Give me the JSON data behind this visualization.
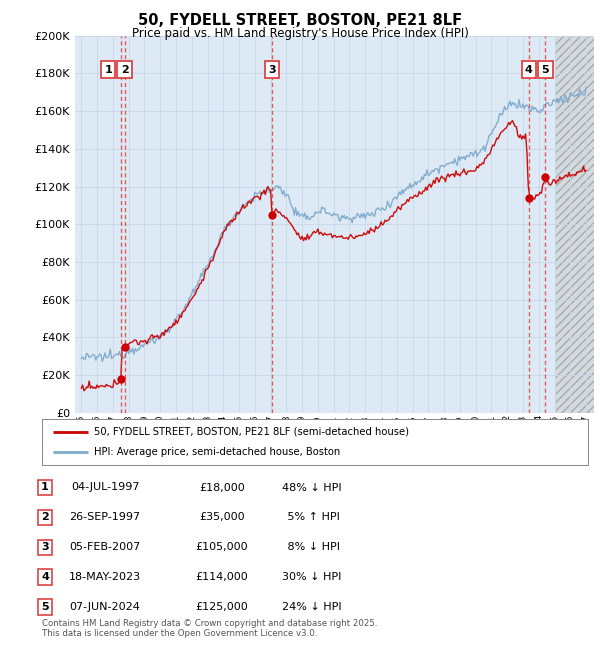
{
  "title": "50, FYDELL STREET, BOSTON, PE21 8LF",
  "subtitle": "Price paid vs. HM Land Registry's House Price Index (HPI)",
  "legend_line1": "50, FYDELL STREET, BOSTON, PE21 8LF (semi-detached house)",
  "legend_line2": "HPI: Average price, semi-detached house, Boston",
  "footnote": "Contains HM Land Registry data © Crown copyright and database right 2025.\nThis data is licensed under the Open Government Licence v3.0.",
  "transactions": [
    {
      "num": 1,
      "date": "04-JUL-1997",
      "price": "£18,000",
      "pct": "48% ↓ HPI",
      "year": 1997.5
    },
    {
      "num": 2,
      "date": "26-SEP-1997",
      "price": "£35,000",
      "pct": " 5% ↑ HPI",
      "year": 1997.75
    },
    {
      "num": 3,
      "date": "05-FEB-2007",
      "price": "£105,000",
      "pct": " 8% ↓ HPI",
      "year": 2007.08
    },
    {
      "num": 4,
      "date": "18-MAY-2023",
      "price": "£114,000",
      "pct": "30% ↓ HPI",
      "year": 2023.37
    },
    {
      "num": 5,
      "date": "07-JUN-2024",
      "price": "£125,000",
      "pct": "24% ↓ HPI",
      "year": 2024.42
    }
  ],
  "price_color": "#cc0000",
  "hpi_color": "#7eaacc",
  "vline_color": "#dd4444",
  "grid_color": "#c8d8e8",
  "bg_color": "#ddeaf5",
  "plot_bg": "#ffffff",
  "future_bg": "#d8d8d8",
  "ylim": [
    0,
    200000
  ],
  "yticks": [
    0,
    20000,
    40000,
    60000,
    80000,
    100000,
    120000,
    140000,
    160000,
    180000,
    200000
  ],
  "xmin": 1994.6,
  "xmax": 2027.5,
  "future_start": 2025.0,
  "hpi_anchors": [
    [
      1995.0,
      29000
    ],
    [
      1996.0,
      29500
    ],
    [
      1997.0,
      30000
    ],
    [
      1997.5,
      31000
    ],
    [
      1998.0,
      33000
    ],
    [
      1999.0,
      36000
    ],
    [
      2000.0,
      40000
    ],
    [
      2001.0,
      49000
    ],
    [
      2002.0,
      62000
    ],
    [
      2003.0,
      78000
    ],
    [
      2004.0,
      96000
    ],
    [
      2005.0,
      108000
    ],
    [
      2006.0,
      115000
    ],
    [
      2007.0,
      118000
    ],
    [
      2007.5,
      120000
    ],
    [
      2008.0,
      116000
    ],
    [
      2008.5,
      107000
    ],
    [
      2009.0,
      103000
    ],
    [
      2009.5,
      104000
    ],
    [
      2010.0,
      107000
    ],
    [
      2010.5,
      107000
    ],
    [
      2011.0,
      105000
    ],
    [
      2011.5,
      103000
    ],
    [
      2012.0,
      104000
    ],
    [
      2012.5,
      104000
    ],
    [
      2013.0,
      104000
    ],
    [
      2013.5,
      106000
    ],
    [
      2014.0,
      108000
    ],
    [
      2014.5,
      111000
    ],
    [
      2015.0,
      115000
    ],
    [
      2015.5,
      118000
    ],
    [
      2016.0,
      121000
    ],
    [
      2016.5,
      124000
    ],
    [
      2017.0,
      127000
    ],
    [
      2017.5,
      129000
    ],
    [
      2018.0,
      132000
    ],
    [
      2018.5,
      133000
    ],
    [
      2019.0,
      135000
    ],
    [
      2019.5,
      136000
    ],
    [
      2020.0,
      137000
    ],
    [
      2020.5,
      140000
    ],
    [
      2021.0,
      148000
    ],
    [
      2021.5,
      156000
    ],
    [
      2022.0,
      162000
    ],
    [
      2022.3,
      165000
    ],
    [
      2022.7,
      163000
    ],
    [
      2023.0,
      163000
    ],
    [
      2023.5,
      161000
    ],
    [
      2024.0,
      160000
    ],
    [
      2024.5,
      163000
    ],
    [
      2025.0,
      165000
    ],
    [
      2026.0,
      168000
    ],
    [
      2027.0,
      170000
    ]
  ],
  "price_anchors": [
    [
      1995.0,
      13000
    ],
    [
      1996.0,
      13500
    ],
    [
      1997.0,
      14000
    ],
    [
      1997.45,
      17500
    ],
    [
      1997.5,
      18000
    ],
    [
      1997.52,
      18200
    ],
    [
      1997.55,
      35000
    ],
    [
      1997.75,
      35200
    ],
    [
      1998.0,
      37000
    ],
    [
      1999.0,
      38000
    ],
    [
      2000.0,
      41000
    ],
    [
      2001.0,
      48000
    ],
    [
      2002.0,
      60000
    ],
    [
      2003.0,
      76000
    ],
    [
      2004.0,
      95000
    ],
    [
      2005.0,
      107000
    ],
    [
      2006.0,
      114000
    ],
    [
      2007.0,
      119000
    ],
    [
      2007.08,
      105000
    ],
    [
      2007.3,
      108000
    ],
    [
      2007.5,
      106000
    ],
    [
      2008.0,
      104000
    ],
    [
      2008.5,
      97000
    ],
    [
      2009.0,
      92000
    ],
    [
      2009.5,
      93000
    ],
    [
      2010.0,
      96000
    ],
    [
      2010.5,
      95000
    ],
    [
      2011.0,
      94000
    ],
    [
      2011.5,
      93000
    ],
    [
      2012.0,
      93000
    ],
    [
      2012.5,
      93500
    ],
    [
      2013.0,
      95000
    ],
    [
      2013.5,
      97000
    ],
    [
      2014.0,
      100000
    ],
    [
      2014.5,
      103000
    ],
    [
      2015.0,
      107000
    ],
    [
      2015.5,
      111000
    ],
    [
      2016.0,
      114000
    ],
    [
      2016.5,
      117000
    ],
    [
      2017.0,
      120000
    ],
    [
      2017.5,
      123000
    ],
    [
      2018.0,
      125000
    ],
    [
      2018.5,
      126000
    ],
    [
      2019.0,
      127000
    ],
    [
      2019.5,
      128000
    ],
    [
      2020.0,
      129000
    ],
    [
      2020.5,
      133000
    ],
    [
      2021.0,
      140000
    ],
    [
      2021.5,
      147000
    ],
    [
      2022.0,
      152000
    ],
    [
      2022.3,
      155000
    ],
    [
      2022.5,
      152000
    ],
    [
      2022.7,
      148000
    ],
    [
      2023.0,
      145000
    ],
    [
      2023.2,
      148000
    ],
    [
      2023.37,
      114000
    ],
    [
      2023.5,
      113000
    ],
    [
      2023.7,
      114000
    ],
    [
      2023.9,
      115000
    ],
    [
      2024.0,
      116000
    ],
    [
      2024.2,
      118000
    ],
    [
      2024.42,
      125000
    ],
    [
      2024.6,
      122000
    ],
    [
      2024.8,
      121000
    ],
    [
      2025.0,
      123000
    ],
    [
      2026.0,
      126000
    ],
    [
      2027.0,
      129000
    ]
  ]
}
